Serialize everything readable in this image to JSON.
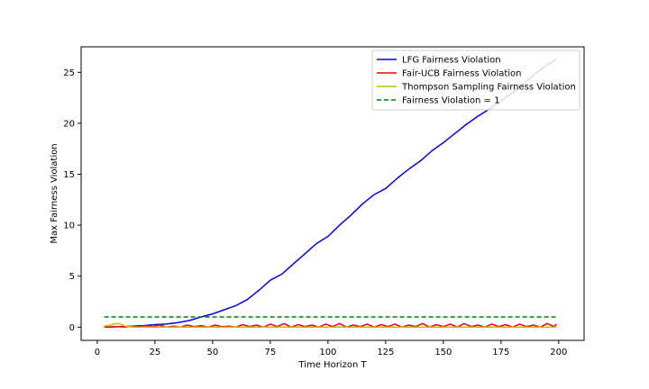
{
  "chart_data": {
    "type": "line",
    "title": "",
    "xlabel": "Time Horizon T",
    "ylabel": "Max Fairness Violation",
    "xlim": [
      -7,
      211
    ],
    "ylim": [
      -1.3,
      27.5
    ],
    "xticks": [
      0,
      25,
      50,
      75,
      100,
      125,
      150,
      175,
      200
    ],
    "yticks": [
      0,
      5,
      10,
      15,
      20,
      25
    ],
    "grid": false,
    "legend_position": "top-right",
    "series": [
      {
        "name": "LFG Fairness Violation",
        "color": "#0000ff",
        "style": "solid",
        "x": [
          3,
          10,
          15,
          20,
          25,
          30,
          35,
          40,
          45,
          50,
          55,
          60,
          65,
          70,
          75,
          80,
          85,
          90,
          95,
          100,
          105,
          110,
          115,
          120,
          125,
          130,
          135,
          140,
          145,
          150,
          155,
          160,
          165,
          170,
          175,
          180,
          185,
          190,
          195,
          199
        ],
        "y": [
          0.0,
          0.05,
          0.1,
          0.15,
          0.25,
          0.3,
          0.45,
          0.65,
          1.0,
          1.3,
          1.7,
          2.1,
          2.7,
          3.6,
          4.6,
          5.2,
          6.2,
          7.2,
          8.2,
          8.9,
          10.0,
          11.0,
          12.1,
          13.0,
          13.6,
          14.6,
          15.5,
          16.3,
          17.3,
          18.1,
          19.0,
          19.9,
          20.7,
          21.4,
          22.2,
          23.0,
          23.9,
          24.9,
          25.7,
          26.3
        ]
      },
      {
        "name": "Fair-UCB Fairness Violation",
        "color": "#ff0000",
        "style": "solid",
        "x": [
          3,
          6,
          9,
          12,
          15,
          18,
          21,
          24,
          27,
          30,
          33,
          36,
          39,
          42,
          45,
          48,
          51,
          54,
          57,
          60,
          63,
          66,
          69,
          72,
          75,
          78,
          81,
          84,
          87,
          90,
          93,
          96,
          99,
          102,
          105,
          108,
          111,
          114,
          117,
          120,
          123,
          126,
          129,
          132,
          135,
          138,
          141,
          144,
          147,
          150,
          153,
          156,
          159,
          162,
          165,
          168,
          171,
          174,
          177,
          180,
          183,
          186,
          189,
          192,
          195,
          198,
          199
        ],
        "y": [
          0.0,
          0.0,
          0.05,
          0.0,
          0.1,
          0.0,
          0.15,
          0.05,
          0.2,
          0.0,
          0.1,
          0.0,
          0.2,
          0.05,
          0.15,
          0.0,
          0.2,
          0.05,
          0.1,
          0.0,
          0.25,
          0.05,
          0.2,
          0.0,
          0.3,
          0.05,
          0.35,
          0.0,
          0.25,
          0.05,
          0.2,
          0.0,
          0.3,
          0.05,
          0.35,
          0.0,
          0.2,
          0.05,
          0.3,
          0.0,
          0.25,
          0.05,
          0.3,
          0.0,
          0.2,
          0.05,
          0.35,
          0.0,
          0.25,
          0.05,
          0.3,
          0.0,
          0.35,
          0.05,
          0.2,
          0.0,
          0.3,
          0.05,
          0.25,
          0.0,
          0.3,
          0.05,
          0.2,
          0.0,
          0.35,
          0.05,
          0.3
        ]
      },
      {
        "name": "Thompson Sampling Fairness Violation",
        "color": "#bfbf00",
        "style": "solid",
        "x": [
          3,
          6,
          8,
          10,
          12,
          15,
          20,
          40,
          80,
          120,
          160,
          199
        ],
        "y": [
          0.1,
          0.2,
          0.35,
          0.3,
          0.1,
          0.02,
          0.0,
          0.0,
          0.0,
          0.0,
          0.0,
          0.0
        ]
      },
      {
        "name": "Fairness Violation = 1",
        "color": "#008000",
        "style": "dashed",
        "x": [
          3,
          199
        ],
        "y": [
          1,
          1
        ]
      }
    ]
  }
}
